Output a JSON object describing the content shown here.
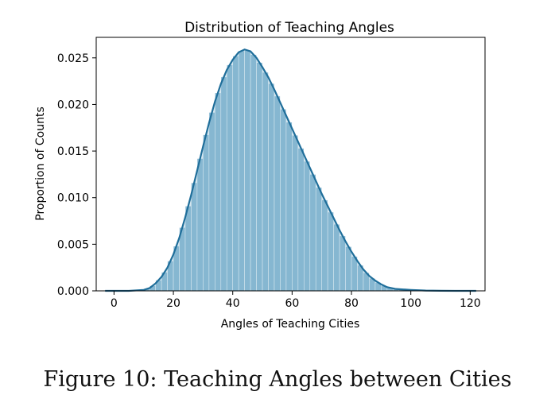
{
  "chart_data": {
    "type": "area",
    "title": "Distribution of Teaching Angles",
    "xlabel": "Angles of Teaching Cities",
    "ylabel": "Proportion of Counts",
    "xlim": [
      -6,
      125
    ],
    "ylim": [
      0,
      0.0272
    ],
    "xticks": [
      0,
      20,
      40,
      60,
      80,
      100,
      120
    ],
    "yticks": [
      0.0,
      0.005,
      0.01,
      0.015,
      0.02,
      0.025
    ],
    "ytick_labels": [
      "0.000",
      "0.005",
      "0.010",
      "0.015",
      "0.020",
      "0.025"
    ],
    "grid": false,
    "legend": "none",
    "colors": {
      "fill": "#86b7d2",
      "line": "#1f6e9a",
      "bar_edge": "#ffffff"
    },
    "series": [
      {
        "style": "kde-line-over-histogram",
        "x": [
          -3,
          0,
          5,
          10,
          12,
          14,
          16,
          18,
          20,
          22,
          24,
          26,
          28,
          30,
          32,
          34,
          36,
          38,
          40,
          42,
          44,
          46,
          48,
          50,
          52,
          54,
          56,
          58,
          60,
          62,
          64,
          66,
          68,
          70,
          72,
          74,
          76,
          78,
          80,
          82,
          84,
          86,
          88,
          90,
          92,
          95,
          100,
          105,
          110,
          115,
          122
        ],
        "y": [
          0.0,
          0.0,
          0.0,
          0.0001,
          0.0003,
          0.0008,
          0.0015,
          0.0025,
          0.0039,
          0.0057,
          0.0079,
          0.0103,
          0.0129,
          0.0155,
          0.018,
          0.0203,
          0.0222,
          0.0237,
          0.0248,
          0.0256,
          0.0259,
          0.0257,
          0.025,
          0.024,
          0.0229,
          0.0216,
          0.0202,
          0.0188,
          0.0174,
          0.016,
          0.0146,
          0.0132,
          0.0118,
          0.0104,
          0.0091,
          0.0078,
          0.0065,
          0.0053,
          0.0042,
          0.0032,
          0.0023,
          0.0016,
          0.0011,
          0.0007,
          0.0004,
          0.0002,
          0.0001,
          3e-05,
          1e-05,
          0.0,
          0.0
        ]
      }
    ]
  },
  "caption": "Figure 10: Teaching Angles between Cities"
}
